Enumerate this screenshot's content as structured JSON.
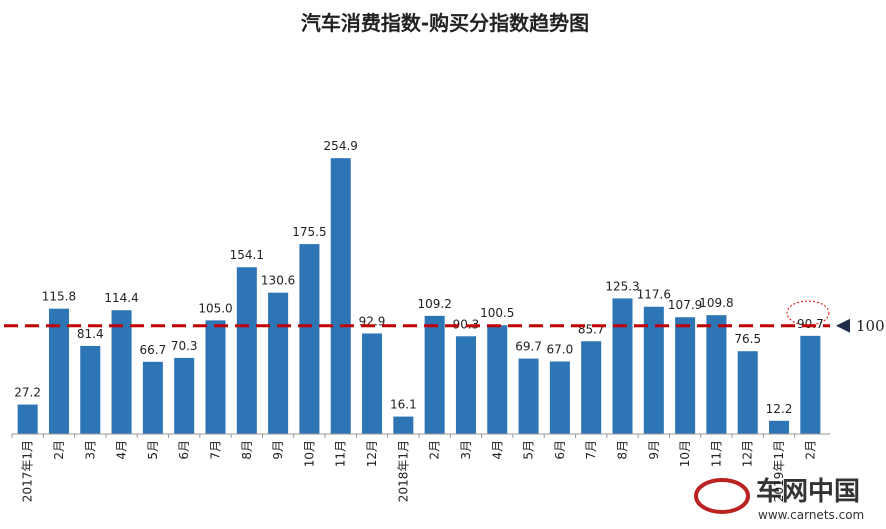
{
  "chart_data": {
    "type": "bar",
    "title": "汽车消费指数-购买分指数趋势图",
    "categories": [
      "2017年1月",
      "2月",
      "3月",
      "4月",
      "5月",
      "6月",
      "7月",
      "8月",
      "9月",
      "10月",
      "11月",
      "12月",
      "2018年1月",
      "2月",
      "3月",
      "4月",
      "5月",
      "6月",
      "7月",
      "8月",
      "9月",
      "10月",
      "11月",
      "12月",
      "2019年1月",
      "2月"
    ],
    "values": [
      27.2,
      115.8,
      81.4,
      114.4,
      66.7,
      70.3,
      105.0,
      154.1,
      130.6,
      175.5,
      254.9,
      92.9,
      16.1,
      109.2,
      90.3,
      100.5,
      69.7,
      67.0,
      85.7,
      125.3,
      117.6,
      107.9,
      109.8,
      76.5,
      12.2,
      90.7
    ],
    "value_labels": [
      "27.2",
      "115.8",
      "81.4",
      "114.4",
      "66.7",
      "70.3",
      "105.0",
      "154.1",
      "130.6",
      "175.5",
      "254.9",
      "92.9",
      "16.1",
      "109.2",
      "90.3",
      "100.5",
      "69.7",
      "67.0",
      "85.7",
      "125.3",
      "117.6",
      "107.9",
      "109.8",
      "76.5",
      "12.2",
      "90.7"
    ],
    "color": "#2e75b6",
    "ylim": [
      0,
      280
    ],
    "reference_line": {
      "value": 100,
      "label": "100",
      "color": "#c00000"
    },
    "watermark": {
      "name": "车网中国",
      "url": "www.carnets.com"
    }
  }
}
